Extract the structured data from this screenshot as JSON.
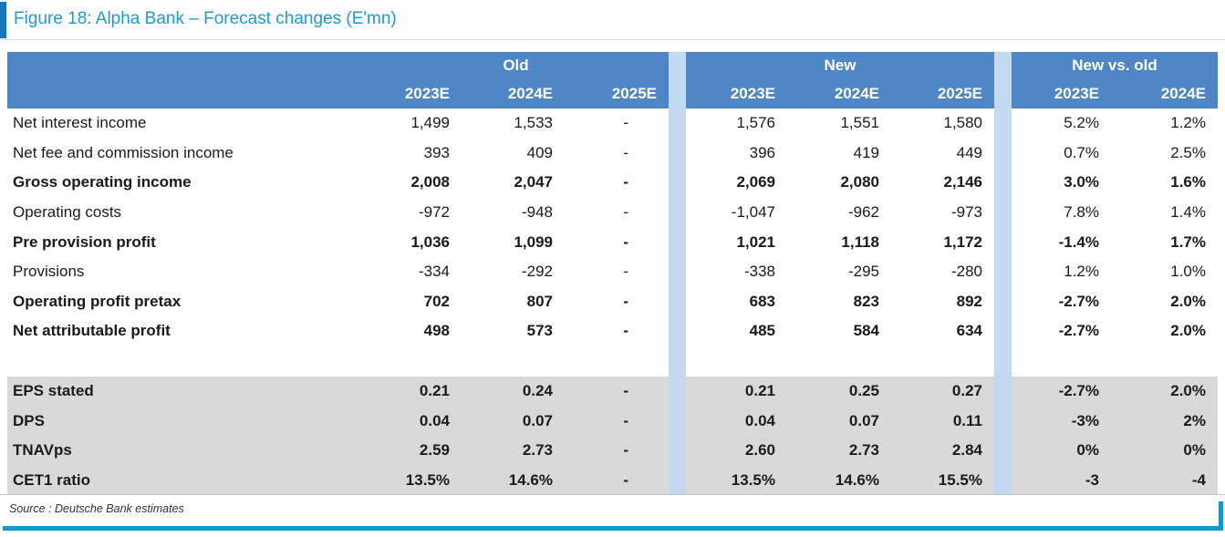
{
  "figure": {
    "title": "Figure 18: Alpha Bank – Forecast changes (E'mn)"
  },
  "colors": {
    "header_blue": "#4e86c6",
    "separator_blue": "#c3d9f1",
    "band_gray": "#d9d9d9",
    "title_cyan": "#1b9bd5",
    "accent_bar_blue": "#1777bd",
    "bottom_rule_blue": "#1498cd"
  },
  "chart_data": {
    "type": "table",
    "title": "Figure 18: Alpha Bank – Forecast changes (E'mn)",
    "column_groups": [
      "Old",
      "New",
      "New vs. old"
    ],
    "columns": [
      "Old 2023E",
      "Old 2024E",
      "Old 2025E",
      "New 2023E",
      "New 2024E",
      "New 2025E",
      "New vs. old 2023E",
      "New vs. old 2024E"
    ],
    "rows": [
      {
        "label": "Net interest income",
        "values": [
          "1,499",
          "1,533",
          "-",
          "1,576",
          "1,551",
          "1,580",
          "5.2%",
          "1.2%"
        ]
      },
      {
        "label": "Net fee and commission income",
        "values": [
          "393",
          "409",
          "-",
          "396",
          "419",
          "449",
          "0.7%",
          "2.5%"
        ]
      },
      {
        "label": "Gross operating income",
        "values": [
          "2,008",
          "2,047",
          "-",
          "2,069",
          "2,080",
          "2,146",
          "3.0%",
          "1.6%"
        ]
      },
      {
        "label": "Operating costs",
        "values": [
          "-972",
          "-948",
          "-",
          "-1,047",
          "-962",
          "-973",
          "7.8%",
          "1.4%"
        ]
      },
      {
        "label": "Pre provision profit",
        "values": [
          "1,036",
          "1,099",
          "-",
          "1,021",
          "1,118",
          "1,172",
          "-1.4%",
          "1.7%"
        ]
      },
      {
        "label": "Provisions",
        "values": [
          "-334",
          "-292",
          "-",
          "-338",
          "-295",
          "-280",
          "1.2%",
          "1.0%"
        ]
      },
      {
        "label": "Operating profit pretax",
        "values": [
          "702",
          "807",
          "-",
          "683",
          "823",
          "892",
          "-2.7%",
          "2.0%"
        ]
      },
      {
        "label": "Net attributable profit",
        "values": [
          "498",
          "573",
          "-",
          "485",
          "584",
          "634",
          "-2.7%",
          "2.0%"
        ]
      },
      {
        "label": "EPS stated",
        "values": [
          "0.21",
          "0.24",
          "-",
          "0.21",
          "0.25",
          "0.27",
          "-2.7%",
          "2.0%"
        ]
      },
      {
        "label": "DPS",
        "values": [
          "0.04",
          "0.07",
          "-",
          "0.04",
          "0.07",
          "0.11",
          "-3%",
          "2%"
        ]
      },
      {
        "label": "TNAVps",
        "values": [
          "2.59",
          "2.73",
          "-",
          "2.60",
          "2.73",
          "2.84",
          "0%",
          "0%"
        ]
      },
      {
        "label": "CET1 ratio",
        "values": [
          "13.5%",
          "14.6%",
          "-",
          "13.5%",
          "14.6%",
          "15.5%",
          "-3",
          "-4"
        ]
      }
    ]
  },
  "table": {
    "groups": [
      {
        "label": "Old",
        "years": [
          "2023E",
          "2024E",
          "2025E"
        ]
      },
      {
        "label": "New",
        "years": [
          "2023E",
          "2024E",
          "2025E"
        ]
      },
      {
        "label": "New vs. old",
        "years": [
          "2023E",
          "2024E"
        ]
      }
    ],
    "rows": [
      {
        "label": "Net interest income",
        "bold": false,
        "section": "main",
        "old": [
          "1,499",
          "1,533",
          "-"
        ],
        "new": [
          "1,576",
          "1,551",
          "1,580"
        ],
        "nvo": [
          "5.2%",
          "1.2%"
        ]
      },
      {
        "label": "Net fee and commission income",
        "bold": false,
        "section": "main",
        "old": [
          "393",
          "409",
          "-"
        ],
        "new": [
          "396",
          "419",
          "449"
        ],
        "nvo": [
          "0.7%",
          "2.5%"
        ]
      },
      {
        "label": "Gross operating income",
        "bold": true,
        "section": "main",
        "old": [
          "2,008",
          "2,047",
          "-"
        ],
        "new": [
          "2,069",
          "2,080",
          "2,146"
        ],
        "nvo": [
          "3.0%",
          "1.6%"
        ]
      },
      {
        "label": "Operating costs",
        "bold": false,
        "section": "main",
        "old": [
          "-972",
          "-948",
          "-"
        ],
        "new": [
          "-1,047",
          "-962",
          "-973"
        ],
        "nvo": [
          "7.8%",
          "1.4%"
        ]
      },
      {
        "label": "Pre provision profit",
        "bold": true,
        "section": "main",
        "old": [
          "1,036",
          "1,099",
          "-"
        ],
        "new": [
          "1,021",
          "1,118",
          "1,172"
        ],
        "nvo": [
          "-1.4%",
          "1.7%"
        ]
      },
      {
        "label": "Provisions",
        "bold": false,
        "section": "main",
        "old": [
          "-334",
          "-292",
          "-"
        ],
        "new": [
          "-338",
          "-295",
          "-280"
        ],
        "nvo": [
          "1.2%",
          "1.0%"
        ]
      },
      {
        "label": "Operating profit pretax",
        "bold": true,
        "section": "main",
        "old": [
          "702",
          "807",
          "-"
        ],
        "new": [
          "683",
          "823",
          "892"
        ],
        "nvo": [
          "-2.7%",
          "2.0%"
        ]
      },
      {
        "label": "Net attributable profit",
        "bold": true,
        "section": "main",
        "old": [
          "498",
          "573",
          "-"
        ],
        "new": [
          "485",
          "584",
          "634"
        ],
        "nvo": [
          "-2.7%",
          "2.0%"
        ]
      },
      {
        "label": "EPS stated",
        "bold": true,
        "section": "metrics",
        "old": [
          "0.21",
          "0.24",
          "-"
        ],
        "new": [
          "0.21",
          "0.25",
          "0.27"
        ],
        "nvo": [
          "-2.7%",
          "2.0%"
        ]
      },
      {
        "label": "DPS",
        "bold": true,
        "section": "metrics",
        "old": [
          "0.04",
          "0.07",
          "-"
        ],
        "new": [
          "0.04",
          "0.07",
          "0.11"
        ],
        "nvo": [
          "-3%",
          "2%"
        ]
      },
      {
        "label": "TNAVps",
        "bold": true,
        "section": "metrics",
        "old": [
          "2.59",
          "2.73",
          "-"
        ],
        "new": [
          "2.60",
          "2.73",
          "2.84"
        ],
        "nvo": [
          "0%",
          "0%"
        ]
      },
      {
        "label": "CET1 ratio",
        "bold": true,
        "section": "metrics",
        "old": [
          "13.5%",
          "14.6%",
          "-"
        ],
        "new": [
          "13.5%",
          "14.6%",
          "15.5%"
        ],
        "nvo": [
          "-3",
          "-4"
        ]
      }
    ]
  },
  "source": {
    "text": "Source : Deutsche Bank estimates"
  }
}
